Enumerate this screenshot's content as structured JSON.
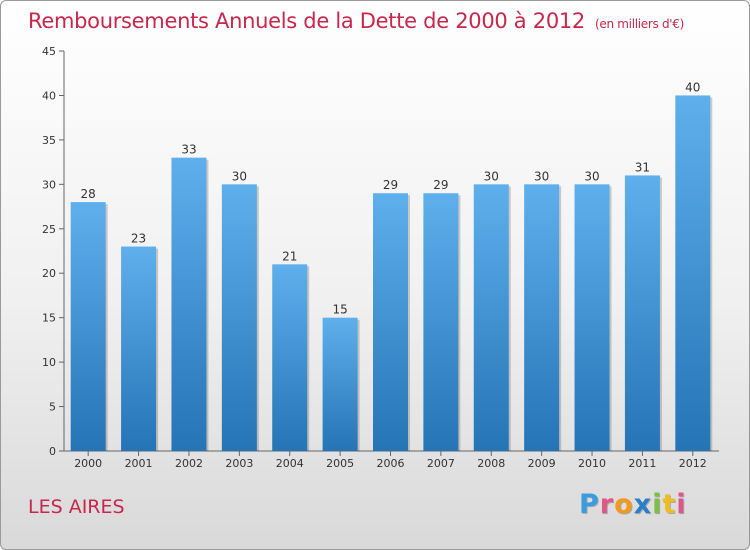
{
  "title": "Remboursements Annuels de la Dette de 2000 à 2012",
  "unit_note": "(en milliers d'€)",
  "place_name": "LES AIRES",
  "logo": {
    "text": "Proxiti",
    "letters": [
      "P",
      "r",
      "o",
      "x",
      "i",
      "t",
      "i"
    ],
    "colors": [
      "#3a9be0",
      "#e0558a",
      "#f39a1e",
      "#2a7fc8",
      "#7ac142",
      "#f0bd20",
      "#e0558a"
    ]
  },
  "chart_data": {
    "type": "bar",
    "title": "Remboursements Annuels de la Dette de 2000 à 2012",
    "xlabel": "",
    "ylabel": "",
    "categories": [
      "2000",
      "2001",
      "2002",
      "2003",
      "2004",
      "2005",
      "2006",
      "2007",
      "2008",
      "2009",
      "2010",
      "2011",
      "2012"
    ],
    "values": [
      28,
      23,
      33,
      30,
      21,
      15,
      29,
      29,
      30,
      30,
      30,
      31,
      40
    ],
    "ylim": [
      0,
      45
    ],
    "yticks": [
      0,
      5,
      10,
      15,
      20,
      25,
      30,
      35,
      40,
      45
    ],
    "grid": false,
    "bar_color_top": "#5eb0ec",
    "bar_color_bottom": "#2574b6",
    "data_labels": true
  }
}
